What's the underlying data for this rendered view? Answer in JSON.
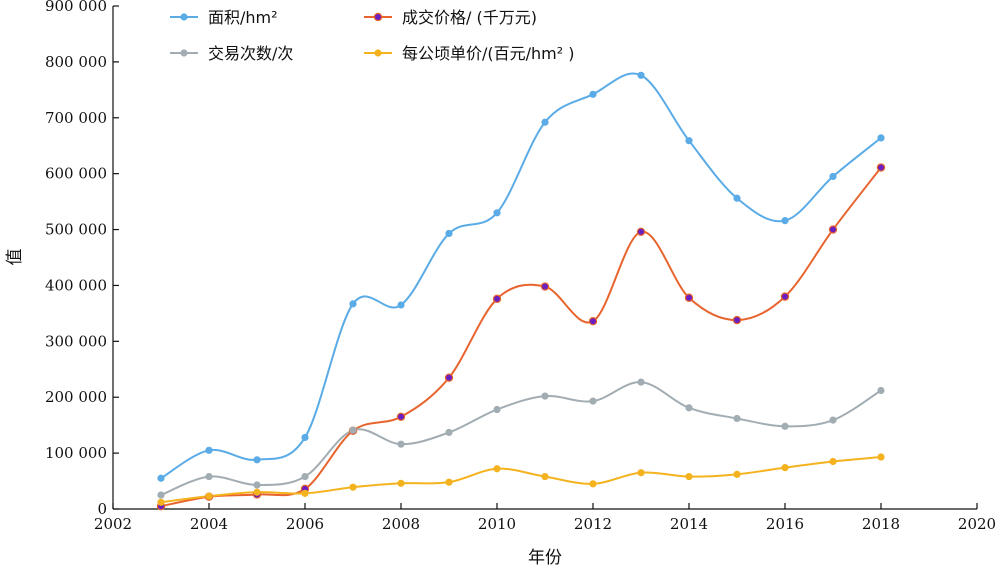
{
  "chart_data": {
    "type": "line",
    "xlabel": "年份",
    "ylabel": "值",
    "xlim": [
      2002,
      2020
    ],
    "ylim": [
      0,
      900000
    ],
    "x_ticks": [
      "2002",
      "2004",
      "2006",
      "2008",
      "2010",
      "2012",
      "2014",
      "2016",
      "2018",
      "2020"
    ],
    "y_ticks": [
      "0",
      "100 000",
      "200 000",
      "300 000",
      "400 000",
      "500 000",
      "600 000",
      "700 000",
      "800 000",
      "900 000"
    ],
    "grid": false,
    "legend_position": "top",
    "x": [
      2003,
      2004,
      2005,
      2006,
      2007,
      2008,
      2009,
      2010,
      2011,
      2012,
      2013,
      2014,
      2015,
      2016,
      2017,
      2018
    ],
    "series": [
      {
        "name": "面积/hm²",
        "color": "#5aabe6",
        "values": [
          55000,
          105000,
          88000,
          128000,
          367000,
          365000,
          493000,
          530000,
          692000,
          742000,
          776000,
          659000,
          556000,
          516000,
          595000,
          664000
        ]
      },
      {
        "name": "成交价格/ (千万元)",
        "color": "#e8642e",
        "marker_color": "#6a1fc0",
        "values": [
          5000,
          22000,
          26000,
          36000,
          140000,
          165000,
          235000,
          376000,
          398000,
          336000,
          496000,
          378000,
          338000,
          380000,
          500000,
          611000
        ]
      },
      {
        "name": "交易次数/次",
        "color": "#a2adb3",
        "values": [
          25000,
          58000,
          43000,
          58000,
          141000,
          116000,
          137000,
          178000,
          202000,
          193000,
          227000,
          181000,
          162000,
          148000,
          159000,
          212000
        ]
      },
      {
        "name": "每公顷单价/(百元/hm² )",
        "color": "#f4b31e",
        "values": [
          12000,
          23000,
          30000,
          28000,
          39000,
          46000,
          48000,
          72000,
          58000,
          45000,
          65000,
          58000,
          62000,
          74000,
          85000,
          93000
        ]
      }
    ]
  }
}
